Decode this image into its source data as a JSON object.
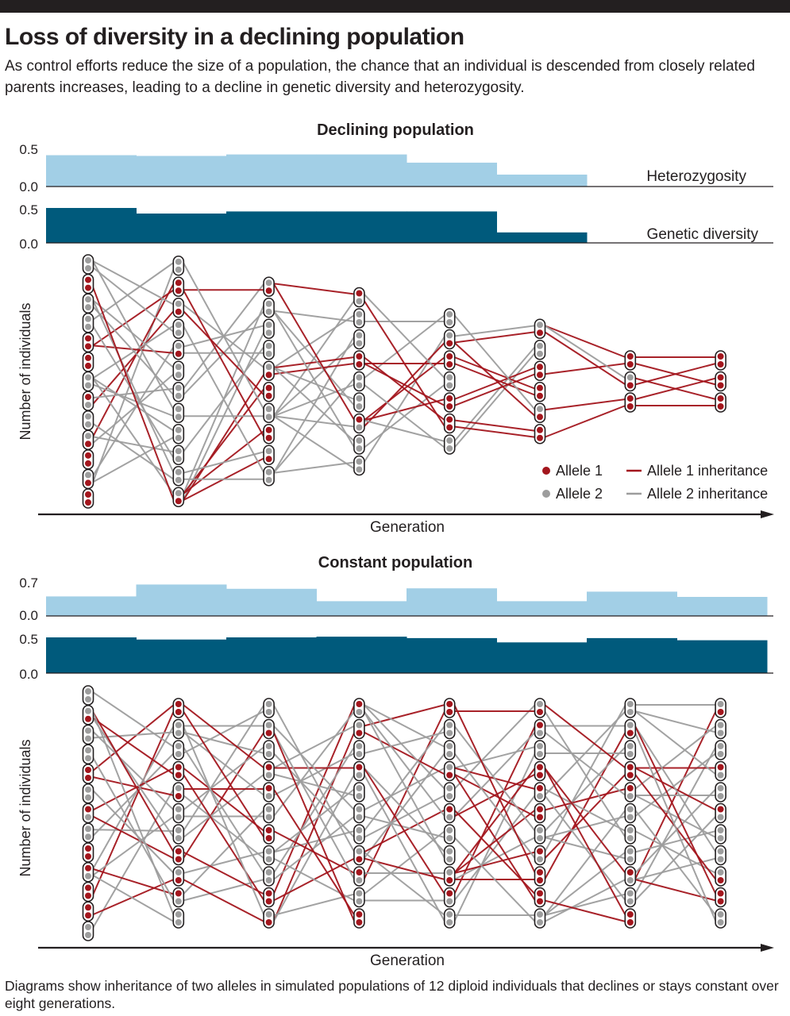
{
  "header": {
    "title": "Loss of diversity in a declining population",
    "subtitle": "As control efforts reduce the size of a population, the chance that an individual is descended from closely related parents increases, leading to a decline in genetic diversity and heterozygosity."
  },
  "footer": {
    "caption": "Diagrams show inheritance of two alleles in simulated populations of 12 diploid individuals that declines or stays constant over eight generations."
  },
  "colors": {
    "heterozygosity": "#a2cfe6",
    "genetic_diversity": "#005a7c",
    "allele1": "#a3161d",
    "allele2": "#9d9d9d",
    "text": "#231f20"
  },
  "legend": {
    "allele1": "Allele 1",
    "allele2": "Allele 2",
    "allele1_line": "Allele 1 inheritance",
    "allele2_line": "Allele 2 inheritance",
    "position": "bottom-right of declining panel"
  },
  "chart_data": [
    {
      "type": "bar",
      "panel": "declining",
      "title": "Declining population",
      "series_label": "Heterozygosity",
      "categories": [
        1,
        2,
        3,
        4,
        5,
        6,
        7,
        8
      ],
      "values": [
        0.42,
        0.41,
        0.43,
        0.43,
        0.32,
        0.16,
        0,
        0
      ],
      "ylim": [
        0,
        0.5
      ],
      "yticks": [
        "0.5",
        "0.0"
      ]
    },
    {
      "type": "bar",
      "panel": "declining",
      "series_label": "Genetic diversity",
      "categories": [
        1,
        2,
        3,
        4,
        5,
        6,
        7,
        8
      ],
      "values": [
        0.5,
        0.42,
        0.45,
        0.45,
        0.45,
        0.15,
        0,
        0
      ],
      "ylim": [
        0,
        0.5
      ],
      "yticks": [
        "0.5",
        "0.0"
      ]
    },
    {
      "type": "scatter",
      "panel": "declining",
      "subtype": "inheritance diagram",
      "ylabel": "Number of individuals",
      "xlabel": "Generation",
      "generations": [
        [
          [
            2,
            2
          ],
          [
            1,
            1
          ],
          [
            2,
            2
          ],
          [
            2,
            2
          ],
          [
            1,
            1
          ],
          [
            1,
            1
          ],
          [
            2,
            2
          ],
          [
            1,
            2
          ],
          [
            2,
            2
          ],
          [
            2,
            1
          ],
          [
            1,
            1
          ],
          [
            2,
            1
          ],
          [
            1,
            1
          ]
        ],
        [
          [
            2,
            2
          ],
          [
            1,
            1
          ],
          [
            2,
            1
          ],
          [
            2,
            2
          ],
          [
            2,
            1
          ],
          [
            2,
            2
          ],
          [
            2,
            2
          ],
          [
            2,
            2
          ],
          [
            2,
            2
          ],
          [
            2,
            2
          ],
          [
            2,
            2
          ],
          [
            2,
            1
          ]
        ],
        [
          [
            2,
            1
          ],
          [
            2,
            2
          ],
          [
            2,
            2
          ],
          [
            2,
            2
          ],
          [
            2,
            1
          ],
          [
            1,
            1
          ],
          [
            2,
            2
          ],
          [
            1,
            1
          ],
          [
            2,
            1
          ],
          [
            2,
            2
          ]
        ],
        [
          [
            1,
            2
          ],
          [
            2,
            2
          ],
          [
            2,
            2
          ],
          [
            1,
            1
          ],
          [
            2,
            2
          ],
          [
            2,
            2
          ],
          [
            1,
            2
          ],
          [
            2,
            2
          ],
          [
            2,
            2
          ]
        ],
        [
          [
            2,
            2
          ],
          [
            2,
            1
          ],
          [
            1,
            1
          ],
          [
            2,
            2
          ],
          [
            1,
            1
          ],
          [
            1,
            1
          ],
          [
            2,
            2
          ]
        ],
        [
          [
            2,
            1
          ],
          [
            2,
            2
          ],
          [
            1,
            1
          ],
          [
            1,
            1
          ],
          [
            2,
            1
          ],
          [
            1,
            1
          ]
        ],
        [
          [
            1,
            1
          ],
          [
            2,
            1
          ],
          [
            1,
            1
          ]
        ],
        [
          [
            1,
            1
          ],
          [
            1,
            1
          ],
          [
            1,
            1
          ]
        ]
      ]
    },
    {
      "type": "bar",
      "panel": "constant",
      "title": "Constant population",
      "series_label": "Heterozygosity",
      "categories": [
        1,
        2,
        3,
        4,
        5,
        6,
        7,
        8
      ],
      "values": [
        0.41,
        0.66,
        0.57,
        0.31,
        0.58,
        0.31,
        0.51,
        0.4
      ],
      "ylim": [
        0,
        0.7
      ],
      "yticks": [
        "0.7",
        "0.0"
      ]
    },
    {
      "type": "bar",
      "panel": "constant",
      "series_label": "Genetic diversity",
      "categories": [
        1,
        2,
        3,
        4,
        5,
        6,
        7,
        8
      ],
      "values": [
        0.5,
        0.47,
        0.5,
        0.51,
        0.49,
        0.43,
        0.49,
        0.46
      ],
      "ylim": [
        0,
        0.5
      ],
      "yticks": [
        "0.5",
        "0.0"
      ]
    },
    {
      "type": "scatter",
      "panel": "constant",
      "subtype": "inheritance diagram",
      "ylabel": "Number of individuals",
      "xlabel": "Generation",
      "generations": [
        [
          [
            2,
            2
          ],
          [
            2,
            1
          ],
          [
            2,
            2
          ],
          [
            2,
            2
          ],
          [
            1,
            1
          ],
          [
            2,
            2
          ],
          [
            1,
            2
          ],
          [
            2,
            2
          ],
          [
            1,
            1
          ],
          [
            1,
            2
          ],
          [
            1,
            1
          ],
          [
            1,
            1
          ],
          [
            2,
            2
          ]
        ],
        [
          [
            1,
            1
          ],
          [
            2,
            2
          ],
          [
            2,
            2
          ],
          [
            1,
            1
          ],
          [
            2,
            1
          ],
          [
            2,
            2
          ],
          [
            2,
            2
          ],
          [
            1,
            1
          ],
          [
            2,
            1
          ],
          [
            1,
            2
          ],
          [
            2,
            2
          ]
        ],
        [
          [
            2,
            2
          ],
          [
            2,
            1
          ],
          [
            2,
            2
          ],
          [
            1,
            2
          ],
          [
            1,
            2
          ],
          [
            2,
            2
          ],
          [
            1,
            1
          ],
          [
            2,
            2
          ],
          [
            2,
            2
          ],
          [
            1,
            1
          ],
          [
            2,
            1
          ]
        ],
        [
          [
            1,
            2
          ],
          [
            2,
            1
          ],
          [
            2,
            2
          ],
          [
            1,
            2
          ],
          [
            2,
            2
          ],
          [
            2,
            2
          ],
          [
            2,
            2
          ],
          [
            2,
            1
          ],
          [
            1,
            2
          ],
          [
            2,
            2
          ],
          [
            1,
            1
          ]
        ],
        [
          [
            1,
            1
          ],
          [
            2,
            2
          ],
          [
            2,
            2
          ],
          [
            2,
            1
          ],
          [
            2,
            2
          ],
          [
            1,
            2
          ],
          [
            2,
            2
          ],
          [
            2,
            2
          ],
          [
            2,
            1
          ],
          [
            1,
            2
          ],
          [
            2,
            2
          ]
        ],
        [
          [
            2,
            1
          ],
          [
            1,
            2
          ],
          [
            2,
            2
          ],
          [
            1,
            1
          ],
          [
            1,
            2
          ],
          [
            1,
            1
          ],
          [
            2,
            2
          ],
          [
            1,
            2
          ],
          [
            1,
            1
          ],
          [
            1,
            1
          ],
          [
            2,
            2
          ]
        ],
        [
          [
            2,
            2
          ],
          [
            2,
            1
          ],
          [
            2,
            2
          ],
          [
            1,
            1
          ],
          [
            1,
            2
          ],
          [
            2,
            2
          ],
          [
            2,
            2
          ],
          [
            2,
            2
          ],
          [
            1,
            2
          ],
          [
            2,
            2
          ],
          [
            1,
            1
          ]
        ],
        [
          [
            2,
            1
          ],
          [
            2,
            2
          ],
          [
            2,
            2
          ],
          [
            1,
            2
          ],
          [
            2,
            2
          ],
          [
            1,
            2
          ],
          [
            2,
            2
          ],
          [
            2,
            2
          ],
          [
            2,
            1
          ],
          [
            1,
            1
          ],
          [
            2,
            2
          ]
        ]
      ]
    }
  ]
}
